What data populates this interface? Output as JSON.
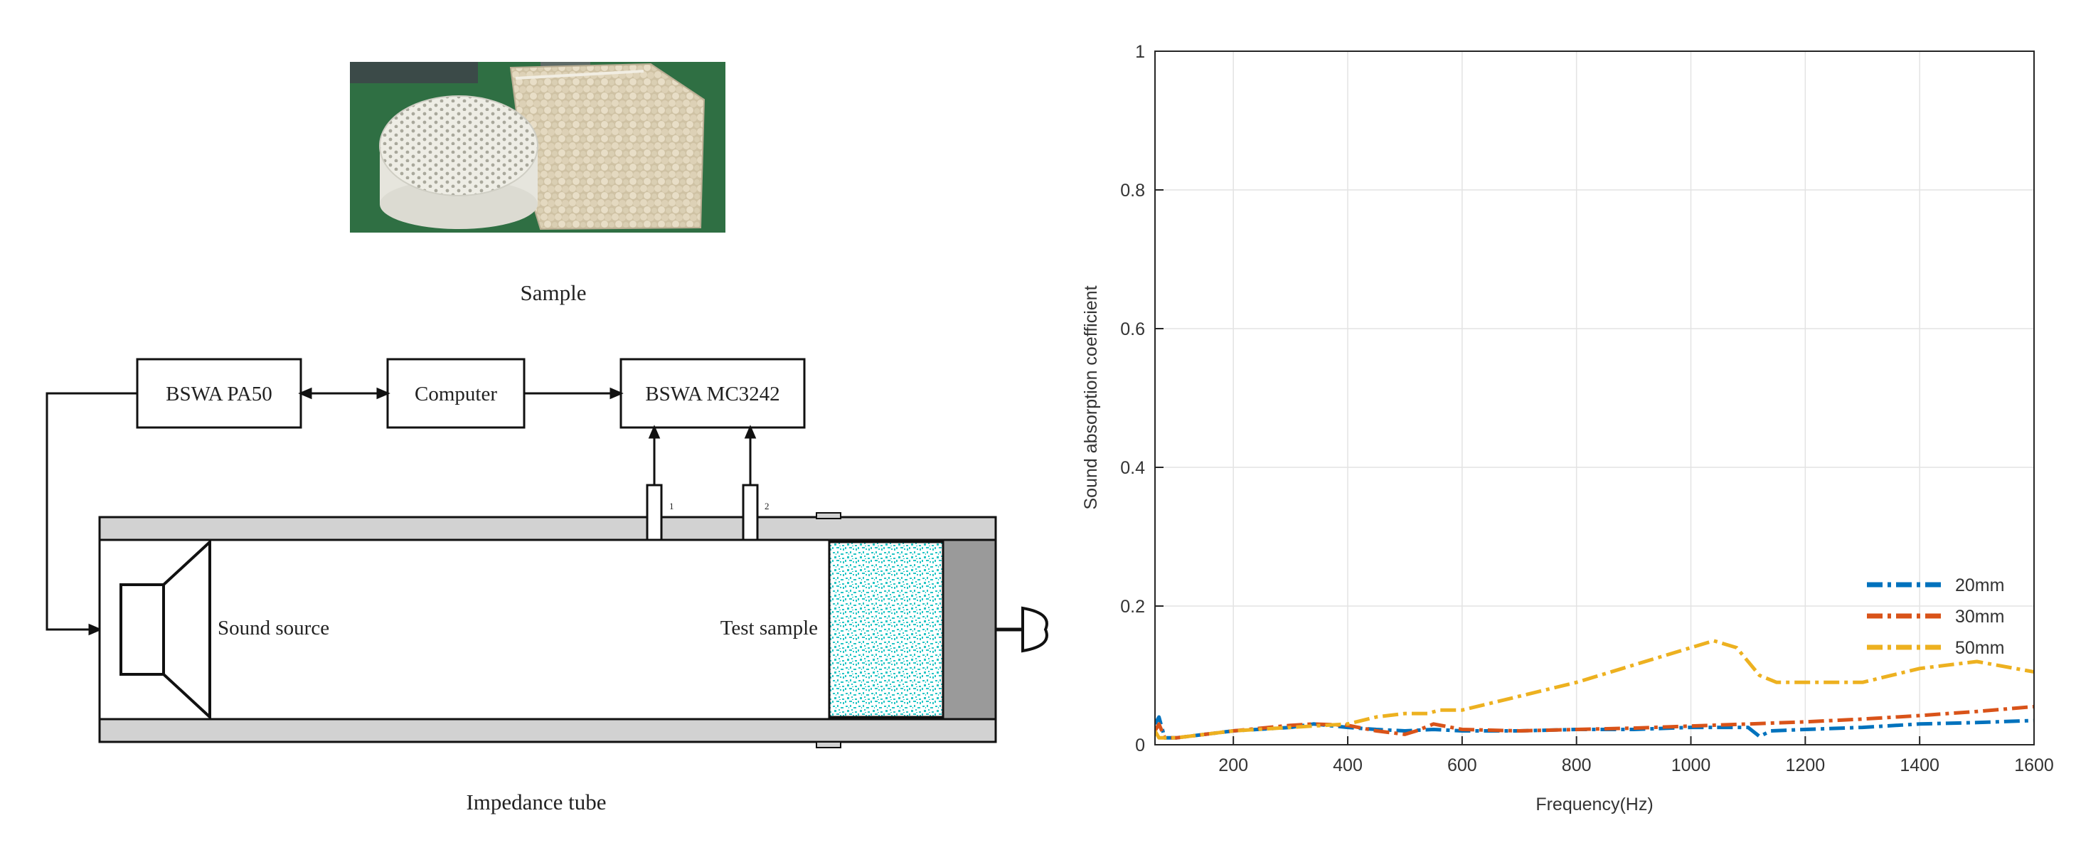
{
  "diagram": {
    "sample_caption": "Sample",
    "tube_caption": "Impedance tube",
    "box_amplifier": "BSWA PA50",
    "box_computer": "Computer",
    "box_daq": "BSWA MC3242",
    "label_source": "Sound source",
    "label_test_sample": "Test sample",
    "mic_label_1": "1",
    "mic_label_2": "2",
    "colors": {
      "line": "#111111",
      "tube_wall": "#d2d2d2",
      "backplate": "#9a9a9a",
      "sample_fill": "#2ec9c9",
      "photo_bg": "#2f6f43",
      "photo_beads": "#d9cdb1",
      "photo_sample": "#efeee6"
    }
  },
  "chart_data": {
    "type": "line",
    "title": "",
    "xlabel": "Frequency(Hz)",
    "ylabel": "Sound absorption coefficient",
    "xlim": [
      63,
      1600
    ],
    "ylim": [
      0,
      1
    ],
    "xticks": [
      200,
      400,
      600,
      800,
      1000,
      1200,
      1400,
      1600
    ],
    "yticks": [
      0,
      0.2,
      0.4,
      0.6,
      0.8,
      1
    ],
    "xtick_labels": [
      "200",
      "400",
      "600",
      "800",
      "1000",
      "1200",
      "1400",
      "1600"
    ],
    "ytick_labels": [
      "0",
      "0.2",
      "0.4",
      "0.6",
      "0.8",
      "1"
    ],
    "grid": true,
    "legend_position": "right",
    "series": [
      {
        "name": "20mm",
        "color": "#0072bd",
        "dash": "dashdot",
        "x": [
          63,
          70,
          80,
          100,
          150,
          200,
          300,
          340,
          400,
          450,
          500,
          550,
          600,
          700,
          800,
          900,
          1000,
          1100,
          1120,
          1140,
          1200,
          1300,
          1400,
          1500,
          1600
        ],
        "y": [
          0.03,
          0.04,
          0.01,
          0.01,
          0.015,
          0.02,
          0.025,
          0.03,
          0.025,
          0.022,
          0.02,
          0.022,
          0.02,
          0.02,
          0.022,
          0.022,
          0.025,
          0.025,
          0.012,
          0.02,
          0.022,
          0.025,
          0.03,
          0.032,
          0.035
        ]
      },
      {
        "name": "30mm",
        "color": "#d95319",
        "dash": "dashdot",
        "x": [
          63,
          70,
          80,
          100,
          150,
          200,
          300,
          340,
          400,
          450,
          500,
          520,
          550,
          600,
          700,
          800,
          900,
          1000,
          1100,
          1200,
          1300,
          1400,
          1500,
          1600
        ],
        "y": [
          0.02,
          0.03,
          0.01,
          0.01,
          0.015,
          0.02,
          0.028,
          0.03,
          0.028,
          0.02,
          0.015,
          0.02,
          0.03,
          0.022,
          0.02,
          0.022,
          0.024,
          0.027,
          0.03,
          0.033,
          0.037,
          0.042,
          0.048,
          0.055
        ]
      },
      {
        "name": "50mm",
        "color": "#edb120",
        "dash": "dashdot",
        "x": [
          63,
          70,
          80,
          100,
          150,
          200,
          300,
          400,
          450,
          500,
          540,
          560,
          600,
          700,
          800,
          900,
          1000,
          1040,
          1080,
          1120,
          1150,
          1200,
          1300,
          1400,
          1500,
          1600
        ],
        "y": [
          0.02,
          0.01,
          0.01,
          0.01,
          0.015,
          0.02,
          0.025,
          0.03,
          0.04,
          0.045,
          0.045,
          0.05,
          0.05,
          0.07,
          0.09,
          0.115,
          0.14,
          0.15,
          0.14,
          0.1,
          0.09,
          0.09,
          0.09,
          0.11,
          0.12,
          0.105
        ]
      }
    ]
  }
}
